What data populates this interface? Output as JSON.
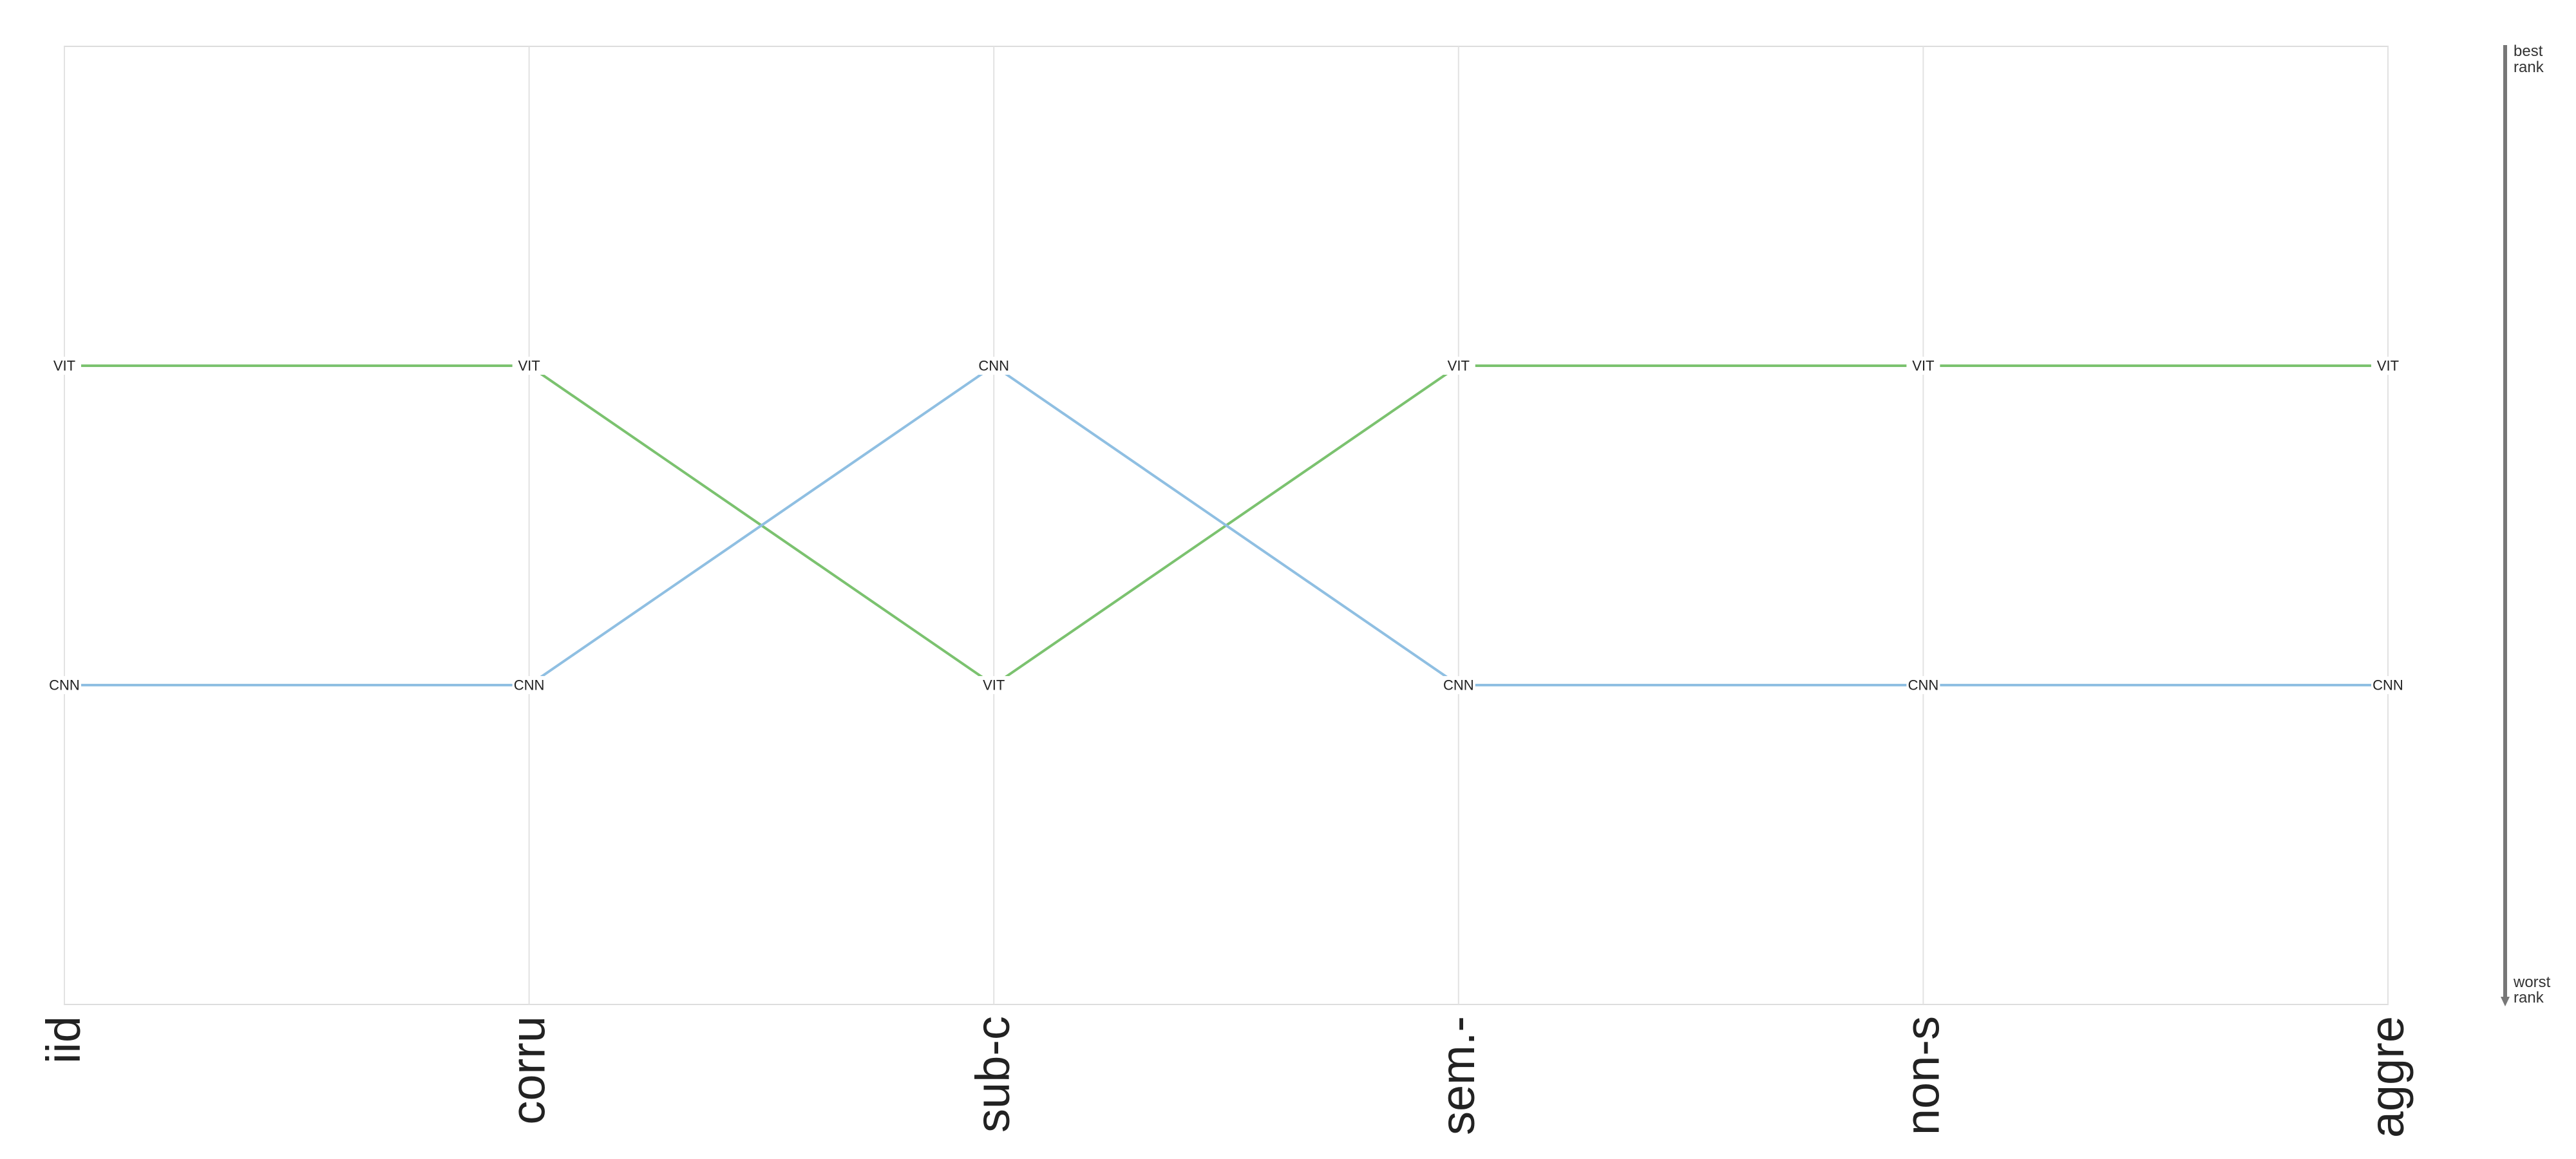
{
  "chart_data": {
    "type": "line",
    "categories": [
      "iid",
      "corru",
      "sub-c",
      "sem.-",
      "non-s",
      "aggre"
    ],
    "series": [
      {
        "name": "VIT",
        "color": "#7bc26f",
        "ranks": [
          1,
          1,
          2,
          1,
          1,
          1
        ]
      },
      {
        "name": "CNN",
        "color": "#8fbfe2",
        "ranks": [
          2,
          2,
          1,
          2,
          2,
          2
        ]
      }
    ],
    "ylim": [
      0,
      3
    ],
    "y_inverted": true,
    "grid": true,
    "rank_axis": {
      "top_label": [
        "best",
        "rank"
      ],
      "bottom_label": [
        "worst",
        "rank"
      ]
    }
  }
}
